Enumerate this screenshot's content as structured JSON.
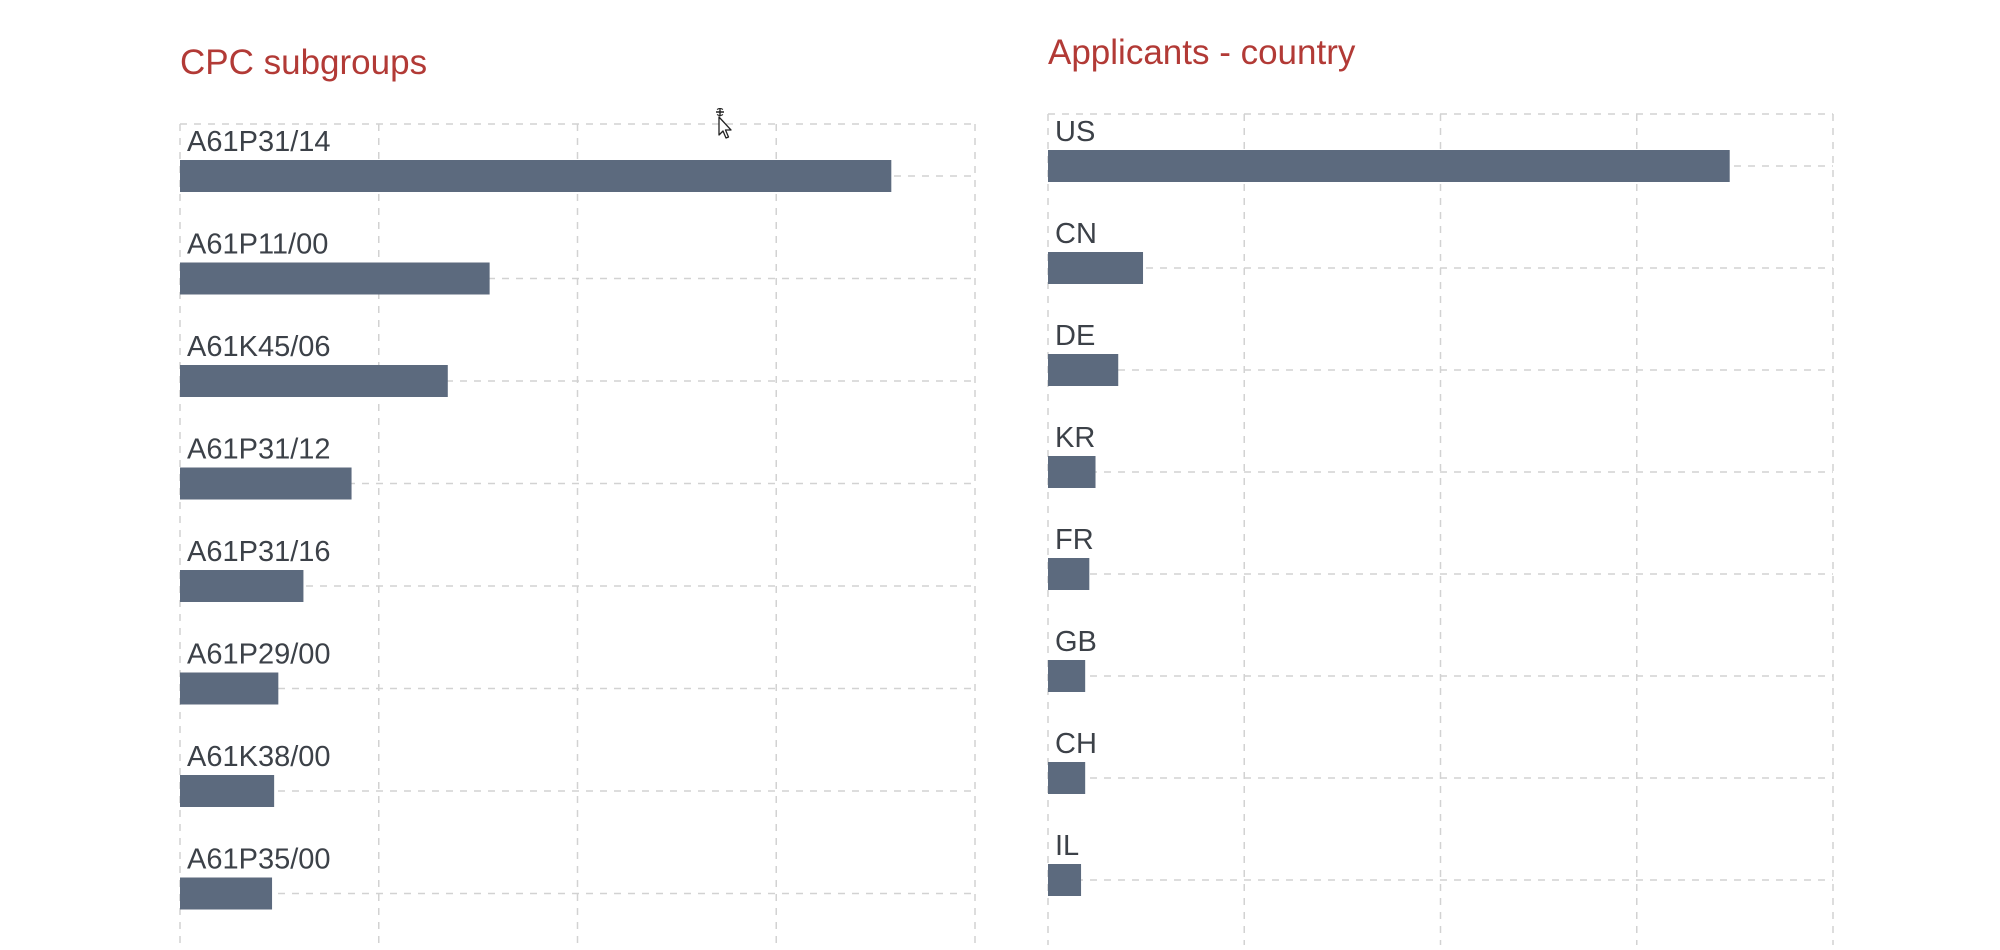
{
  "colors": {
    "title": "#b23a36",
    "bar": "#5c6a7e",
    "label": "#3c4148",
    "grid": "#d2d2d2"
  },
  "chart_data": [
    {
      "type": "bar",
      "orientation": "horizontal",
      "title": "CPC subgroups",
      "categories": [
        "A61P31/14",
        "A61P11/00",
        "A61K45/06",
        "A61P31/12",
        "A61P31/16",
        "A61P29/00",
        "A61K38/00",
        "A61P35/00"
      ],
      "values": [
        3.4,
        1.48,
        1.28,
        0.82,
        0.59,
        0.47,
        0.45,
        0.44
      ],
      "xlim": [
        0,
        3.8
      ],
      "grid": true,
      "legend": "none"
    },
    {
      "type": "bar",
      "orientation": "horizontal",
      "title": "Applicants - country",
      "categories": [
        "US",
        "CN",
        "DE",
        "KR",
        "FR",
        "GB",
        "CH",
        "IL"
      ],
      "values": [
        3.3,
        0.46,
        0.34,
        0.23,
        0.2,
        0.18,
        0.18,
        0.16
      ],
      "xlim": [
        0,
        3.8
      ],
      "grid": true,
      "legend": "none"
    }
  ],
  "cursor": {
    "icon": "move-cursor-icon"
  }
}
